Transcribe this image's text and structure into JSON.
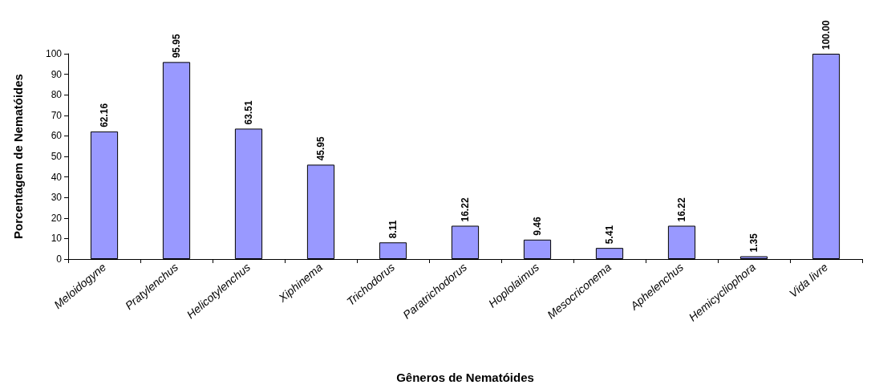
{
  "chart_data": {
    "type": "bar",
    "xlabel": "Gêneros de Nematóides",
    "ylabel": "Porcentagem de Nematóides",
    "categories": [
      "Meloidogyne",
      "Pratylenchus",
      "Helicotylenchus",
      "Xiphinema",
      "Trichodorus",
      "Paratrichodorus",
      "Hoplolaimus",
      "Mesocriconema",
      "Aphelenchus",
      "Hemicycliophora",
      "Vida livre"
    ],
    "values": [
      62.16,
      95.95,
      63.51,
      45.95,
      8.11,
      16.22,
      9.46,
      5.41,
      16.22,
      1.35,
      100.0
    ],
    "value_labels": [
      "62.16",
      "95.95",
      "63.51",
      "45.95",
      "8.11",
      "16.22",
      "9.46",
      "5.41",
      "16.22",
      "1.35",
      "100.00"
    ],
    "color": "#9999ff",
    "ylim": [
      0,
      100
    ],
    "yticks": [
      0,
      10,
      20,
      30,
      40,
      50,
      60,
      70,
      80,
      90,
      100
    ],
    "grid": false
  }
}
